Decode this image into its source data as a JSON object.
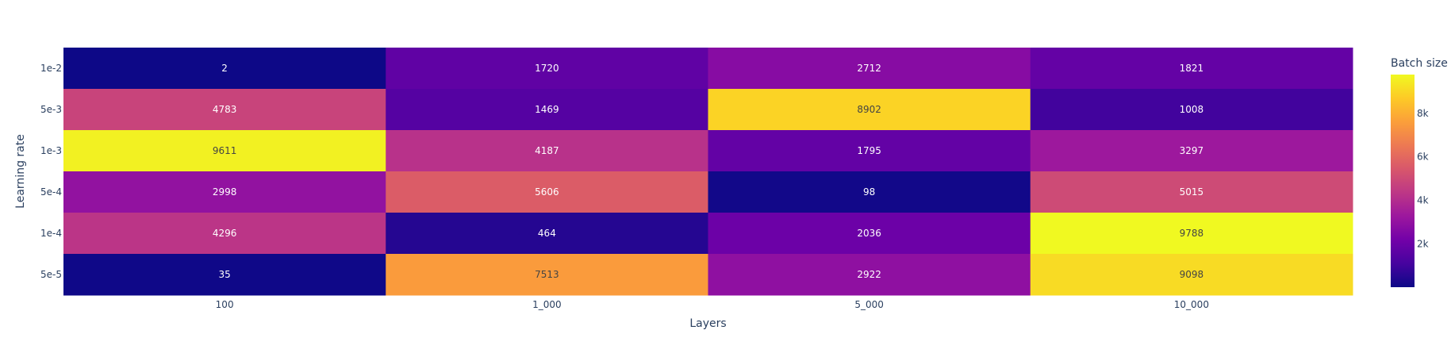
{
  "chart_data": {
    "type": "heatmap",
    "title": "",
    "xlabel": "Layers",
    "ylabel": "Learning rate",
    "x_categories": [
      "100",
      "1_000",
      "5_000",
      "10_000"
    ],
    "y_categories": [
      "1e-2",
      "5e-3",
      "1e-3",
      "5e-4",
      "1e-4",
      "5e-5"
    ],
    "values": [
      [
        2,
        1720,
        2712,
        1821
      ],
      [
        4783,
        1469,
        8902,
        1008
      ],
      [
        9611,
        4187,
        1795,
        3297
      ],
      [
        2998,
        5606,
        98,
        5015
      ],
      [
        4296,
        464,
        2036,
        9788
      ],
      [
        35,
        7513,
        2922,
        9098
      ]
    ],
    "colorbar": {
      "title": "Batch size",
      "min": 2,
      "max": 9788,
      "tick_values": [
        2000,
        4000,
        6000,
        8000
      ],
      "tick_labels": [
        "2k",
        "4k",
        "6k",
        "8k"
      ],
      "colorscale": "plasma"
    },
    "show_cell_values": true,
    "grid": false
  }
}
